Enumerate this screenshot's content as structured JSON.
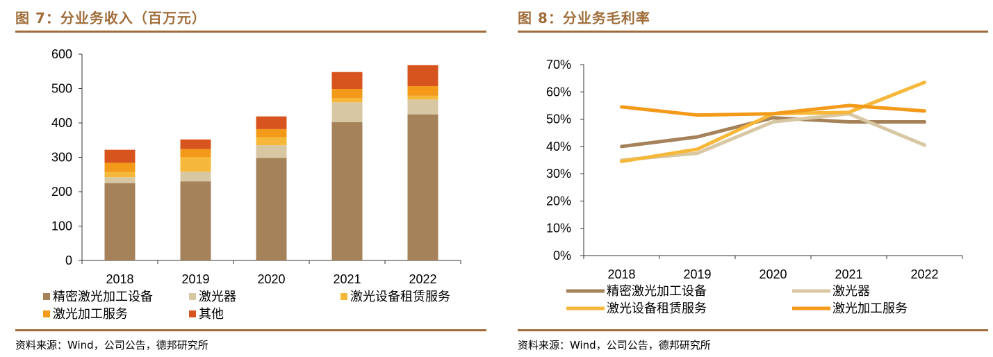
{
  "left": {
    "title": "图 7：分业务收入（百万元）",
    "source": "资料来源：Wind，公司公告，德邦研究所",
    "chart_data": {
      "type": "bar",
      "stacked": true,
      "title": "分业务收入（百万元）",
      "categories": [
        "2018",
        "2019",
        "2020",
        "2021",
        "2022"
      ],
      "yticks": [
        "0",
        "100",
        "200",
        "300",
        "400",
        "500",
        "600"
      ],
      "ylim": [
        0,
        600
      ],
      "legend_position": "bottom",
      "series": [
        {
          "name": "精密激光加工设备",
          "color": "#a5825a",
          "values": [
            225,
            230,
            298,
            402,
            425
          ]
        },
        {
          "name": "激光器",
          "color": "#d8c7a3",
          "values": [
            17,
            28,
            37,
            58,
            43
          ]
        },
        {
          "name": "激光设备租赁服务",
          "color": "#f6b83a",
          "values": [
            15,
            43,
            23,
            12,
            11
          ]
        },
        {
          "name": "激光加工服务",
          "color": "#f39a1a",
          "values": [
            27,
            23,
            24,
            27,
            28
          ]
        },
        {
          "name": "其他",
          "color": "#d8541e",
          "values": [
            38,
            28,
            37,
            49,
            61
          ]
        }
      ]
    }
  },
  "right": {
    "title": "图 8：分业务毛利率",
    "source": "资料来源：Wind，公司公告，德邦研究所",
    "chart_data": {
      "type": "line",
      "title": "分业务毛利率",
      "categories": [
        "2018",
        "2019",
        "2020",
        "2021",
        "2022"
      ],
      "yticks": [
        "0%",
        "10%",
        "20%",
        "30%",
        "40%",
        "50%",
        "60%",
        "70%"
      ],
      "ylim": [
        0,
        70
      ],
      "legend_position": "bottom",
      "series": [
        {
          "name": "精密激光加工设备",
          "color": "#a5825a",
          "values": [
            40,
            43.5,
            50.5,
            49,
            49
          ]
        },
        {
          "name": "激光器",
          "color": "#d8c7a3",
          "values": [
            35,
            37.5,
            49,
            52,
            40.5
          ]
        },
        {
          "name": "激光设备租赁服务",
          "color": "#f6b83a",
          "values": [
            34.5,
            39,
            52,
            52.5,
            63.5
          ]
        },
        {
          "name": "激光加工服务",
          "color": "#f39a1a",
          "values": [
            54.5,
            51.5,
            52,
            55,
            53
          ]
        }
      ]
    }
  }
}
